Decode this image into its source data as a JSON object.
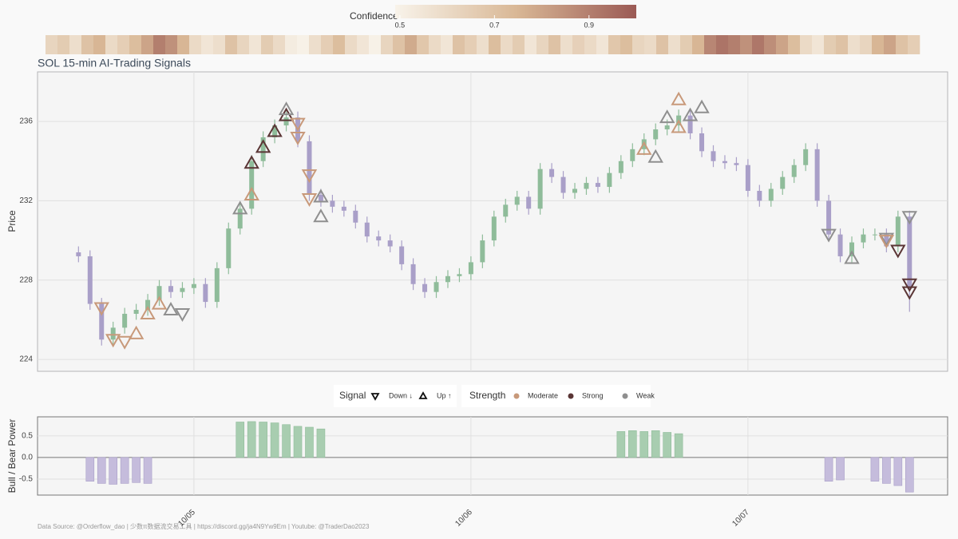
{
  "colorbar": {
    "title": "Confidence",
    "lim": [
      0.49,
      1.0
    ],
    "ticks": [
      0.5,
      0.7,
      0.9
    ],
    "colormap": [
      "#f8f3ea",
      "#d9b896",
      "#9b5a55"
    ]
  },
  "chart_data": [
    {
      "type": "candlestick",
      "title": "SOL 15-min AI-Trading Signals",
      "y_label": "Price",
      "x": [
        -10,
        -9,
        -8,
        -7,
        -6,
        -5,
        -4,
        -3,
        -2,
        -1,
        0,
        1,
        2,
        3,
        4,
        5,
        6,
        7,
        8,
        9,
        10,
        11,
        12,
        13,
        14,
        15,
        16,
        17,
        18,
        19,
        20,
        21,
        22,
        23,
        24,
        25,
        26,
        27,
        28,
        29,
        30,
        31,
        32,
        33,
        34,
        35,
        36,
        37,
        38,
        39,
        40,
        41,
        42,
        43,
        44,
        45,
        46,
        47,
        48,
        49,
        50,
        51,
        52,
        53,
        54,
        55,
        56,
        57,
        58,
        59,
        60,
        61,
        62
      ],
      "open": [
        229.4,
        229.2,
        226.8,
        225.0,
        225.6,
        226.3,
        226.5,
        227.0,
        227.7,
        227.4,
        227.6,
        227.8,
        226.9,
        228.6,
        230.6,
        231.6,
        234.0,
        235.2,
        235.8,
        236.2,
        235.0,
        232.3,
        232.0,
        231.7,
        231.5,
        230.9,
        230.2,
        230.0,
        229.7,
        228.8,
        227.8,
        227.4,
        227.9,
        228.2,
        228.3,
        228.9,
        230.0,
        231.2,
        231.8,
        232.2,
        231.6,
        233.6,
        233.2,
        232.4,
        232.6,
        232.9,
        232.7,
        233.4,
        234.0,
        234.6,
        235.1,
        235.6,
        235.8,
        236.3,
        235.4,
        234.5,
        234.0,
        233.9,
        233.8,
        232.5,
        232.0,
        232.6,
        233.2,
        233.8,
        234.6,
        232.0,
        230.3,
        229.2,
        229.9,
        230.3,
        230.3,
        229.7,
        231.2
      ],
      "high": [
        229.7,
        229.5,
        227.1,
        225.9,
        226.6,
        226.8,
        227.3,
        228.0,
        228.0,
        227.9,
        228.1,
        228.1,
        228.9,
        230.9,
        231.9,
        234.3,
        235.5,
        236.1,
        236.5,
        236.5,
        235.3,
        232.6,
        232.3,
        232.0,
        231.8,
        231.2,
        230.5,
        230.3,
        230.0,
        229.1,
        228.1,
        228.2,
        228.5,
        228.6,
        229.2,
        230.3,
        231.5,
        232.1,
        232.5,
        232.5,
        233.9,
        233.9,
        233.5,
        232.9,
        233.2,
        233.2,
        233.7,
        234.3,
        234.9,
        235.4,
        235.9,
        236.1,
        236.6,
        236.6,
        235.7,
        234.8,
        234.3,
        234.2,
        234.1,
        232.8,
        232.9,
        233.5,
        234.1,
        234.9,
        234.9,
        232.3,
        230.6,
        230.2,
        230.6,
        230.6,
        230.6,
        231.5,
        231.5
      ],
      "low": [
        228.9,
        226.5,
        224.7,
        224.7,
        225.3,
        226.0,
        226.2,
        226.7,
        227.1,
        227.1,
        227.3,
        226.6,
        226.6,
        228.3,
        230.3,
        231.3,
        233.7,
        234.9,
        235.5,
        234.7,
        232.0,
        231.7,
        231.4,
        231.2,
        230.6,
        229.9,
        229.7,
        229.4,
        228.5,
        227.5,
        227.1,
        227.1,
        227.6,
        227.9,
        228.0,
        228.6,
        229.7,
        230.9,
        231.5,
        231.3,
        231.3,
        232.9,
        232.1,
        232.1,
        232.3,
        232.4,
        232.4,
        233.1,
        233.7,
        234.3,
        234.8,
        235.3,
        235.5,
        235.1,
        234.2,
        233.7,
        233.6,
        233.5,
        232.2,
        231.7,
        231.7,
        232.3,
        232.9,
        233.5,
        231.7,
        230.0,
        228.9,
        228.9,
        229.6,
        230.0,
        229.4,
        229.4,
        226.4
      ],
      "close": [
        229.2,
        226.8,
        225.0,
        225.6,
        226.3,
        226.5,
        227.0,
        227.7,
        227.4,
        227.6,
        227.8,
        226.9,
        228.6,
        230.6,
        231.6,
        234.0,
        235.2,
        235.8,
        236.2,
        235.0,
        232.3,
        232.0,
        231.7,
        231.5,
        230.9,
        230.2,
        230.0,
        229.7,
        228.8,
        227.8,
        227.4,
        227.9,
        228.2,
        228.3,
        228.9,
        230.0,
        231.2,
        231.8,
        232.2,
        231.6,
        233.6,
        233.2,
        232.4,
        232.6,
        232.9,
        232.7,
        233.4,
        234.0,
        234.6,
        235.1,
        235.6,
        235.8,
        236.3,
        235.4,
        234.5,
        234.0,
        233.9,
        233.8,
        232.5,
        232.0,
        232.6,
        233.2,
        233.8,
        234.6,
        232.0,
        230.3,
        229.2,
        229.9,
        230.3,
        230.3,
        229.7,
        231.2,
        227.6
      ],
      "confidence": [
        0.62,
        0.66,
        0.58,
        0.7,
        0.75,
        0.6,
        0.65,
        0.72,
        0.8,
        0.9,
        0.85,
        0.75,
        0.6,
        0.55,
        0.58,
        0.7,
        0.62,
        0.55,
        0.66,
        0.6,
        0.52,
        0.5,
        0.58,
        0.65,
        0.72,
        0.6,
        0.55,
        0.5,
        0.62,
        0.7,
        0.78,
        0.68,
        0.6,
        0.55,
        0.7,
        0.65,
        0.58,
        0.72,
        0.6,
        0.66,
        0.55,
        0.62,
        0.7,
        0.58,
        0.64,
        0.6,
        0.55,
        0.68,
        0.72,
        0.62,
        0.6,
        0.7,
        0.58,
        0.66,
        0.75,
        0.88,
        0.93,
        0.9,
        0.85,
        0.92,
        0.86,
        0.8,
        0.72,
        0.6,
        0.55,
        0.66,
        0.7,
        0.58,
        0.62,
        0.75,
        0.8,
        0.7,
        0.65
      ],
      "up_color": "#8fbc9a",
      "down_color": "#a99fc8",
      "xlim": [
        -13.55,
        65.3
      ],
      "ylim": [
        223.4,
        238.5
      ],
      "yticks": [
        224,
        228,
        232,
        236
      ],
      "grid": true,
      "signals": {
        "x": [
          -8,
          -7,
          -6,
          -5,
          -4,
          -3,
          -2,
          -1,
          4,
          5,
          5,
          6,
          7,
          8,
          8,
          9,
          9,
          10,
          10,
          11,
          11,
          39,
          40,
          41,
          42,
          42,
          43,
          44,
          55,
          57,
          60,
          60,
          61,
          62,
          62,
          62
        ],
        "y": [
          226.6,
          225.0,
          224.9,
          225.3,
          226.3,
          226.8,
          226.5,
          226.3,
          231.6,
          232.3,
          233.9,
          234.7,
          235.5,
          236.3,
          236.6,
          235.9,
          235.2,
          233.3,
          232.1,
          231.2,
          232.2,
          234.6,
          234.2,
          236.2,
          235.7,
          237.1,
          236.3,
          236.7,
          230.3,
          229.1,
          230.1,
          230.0,
          229.5,
          231.2,
          227.8,
          227.4
        ],
        "direction": [
          "Down ↓",
          "Down ↓",
          "Down ↓",
          "Up ↑",
          "Up ↑",
          "Up ↑",
          "Up ↑",
          "Down ↓",
          "Up ↑",
          "Up ↑",
          "Up ↑",
          "Up ↑",
          "Up ↑",
          "Up ↑",
          "Up ↑",
          "Down ↓",
          "Down ↓",
          "Down ↓",
          "Down ↓",
          "Up ↑",
          "Up ↑",
          "Up ↑",
          "Up ↑",
          "Up ↑",
          "Up ↑",
          "Up ↑",
          "Up ↑",
          "Up ↑",
          "Down ↓",
          "Up ↑",
          "Down ↓",
          "Down ↓",
          "Down ↓",
          "Down ↓",
          "Down ↓",
          "Down ↓"
        ],
        "strength": [
          "Moderate",
          "Moderate",
          "Moderate",
          "Moderate",
          "Moderate",
          "Moderate",
          "Weak",
          "Weak",
          "Weak",
          "Moderate",
          "Strong",
          "Strong",
          "Strong",
          "Strong",
          "Weak",
          "Moderate",
          "Moderate",
          "Moderate",
          "Moderate",
          "Weak",
          "Weak",
          "Moderate",
          "Weak",
          "Weak",
          "Moderate",
          "Moderate",
          "Weak",
          "Weak",
          "Weak",
          "Weak",
          "Weak",
          "Moderate",
          "Strong",
          "Weak",
          "Strong",
          "Strong"
        ]
      },
      "legend": {
        "signal_title": "Signal",
        "directions": [
          "Down ↓",
          "Up ↑"
        ],
        "strength_title": "Strength",
        "strengths": [
          {
            "name": "Moderate",
            "color": "#c8997a"
          },
          {
            "name": "Strong",
            "color": "#5a3535"
          },
          {
            "name": "Weak",
            "color": "#8f8f8f"
          }
        ]
      }
    },
    {
      "type": "bar",
      "y_label": "Bull / Bear Power",
      "x": [
        -10,
        -9,
        -8,
        -7,
        -6,
        -5,
        -4,
        -3,
        -2,
        -1,
        0,
        1,
        2,
        3,
        4,
        5,
        6,
        7,
        8,
        9,
        10,
        11,
        12,
        13,
        14,
        15,
        16,
        17,
        18,
        19,
        20,
        21,
        22,
        23,
        24,
        25,
        26,
        27,
        28,
        29,
        30,
        31,
        32,
        33,
        34,
        35,
        36,
        37,
        38,
        39,
        40,
        41,
        42,
        43,
        44,
        45,
        46,
        47,
        48,
        49,
        50,
        51,
        52,
        53,
        54,
        55,
        56,
        57,
        58,
        59,
        60,
        61,
        62
      ],
      "values": [
        null,
        -0.55,
        -0.6,
        -0.62,
        -0.6,
        -0.58,
        -0.6,
        null,
        null,
        null,
        null,
        null,
        null,
        null,
        0.82,
        0.83,
        0.82,
        0.8,
        0.76,
        0.72,
        0.7,
        0.66,
        null,
        null,
        null,
        null,
        null,
        null,
        null,
        null,
        null,
        null,
        null,
        null,
        null,
        null,
        null,
        null,
        null,
        null,
        null,
        null,
        null,
        null,
        null,
        null,
        null,
        0.6,
        0.62,
        0.6,
        0.62,
        0.58,
        0.55,
        null,
        null,
        null,
        null,
        null,
        null,
        null,
        null,
        null,
        null,
        null,
        null,
        -0.55,
        -0.52,
        null,
        null,
        -0.55,
        -0.6,
        -0.65,
        -0.8
      ],
      "pos_color": "#a8cdb0",
      "neg_color": "#c5bcdc",
      "xlim": [
        -13.55,
        65.3
      ],
      "ylim": [
        -0.87,
        0.94
      ],
      "xticks": [
        {
          "value": 0,
          "label": "10/05"
        },
        {
          "value": 24,
          "label": "10/06"
        },
        {
          "value": 48,
          "label": "10/07"
        }
      ],
      "yticks": [
        -0.5,
        {
          "value": 0,
          "label": "0.0"
        },
        0.5
      ],
      "grid": true
    }
  ],
  "source": "Data Source:  @Orderflow_dao | 少数π数据流交易工具 | https://discord.gg/ja4N9Yw9Em | Youtube:  @TraderDao2023"
}
